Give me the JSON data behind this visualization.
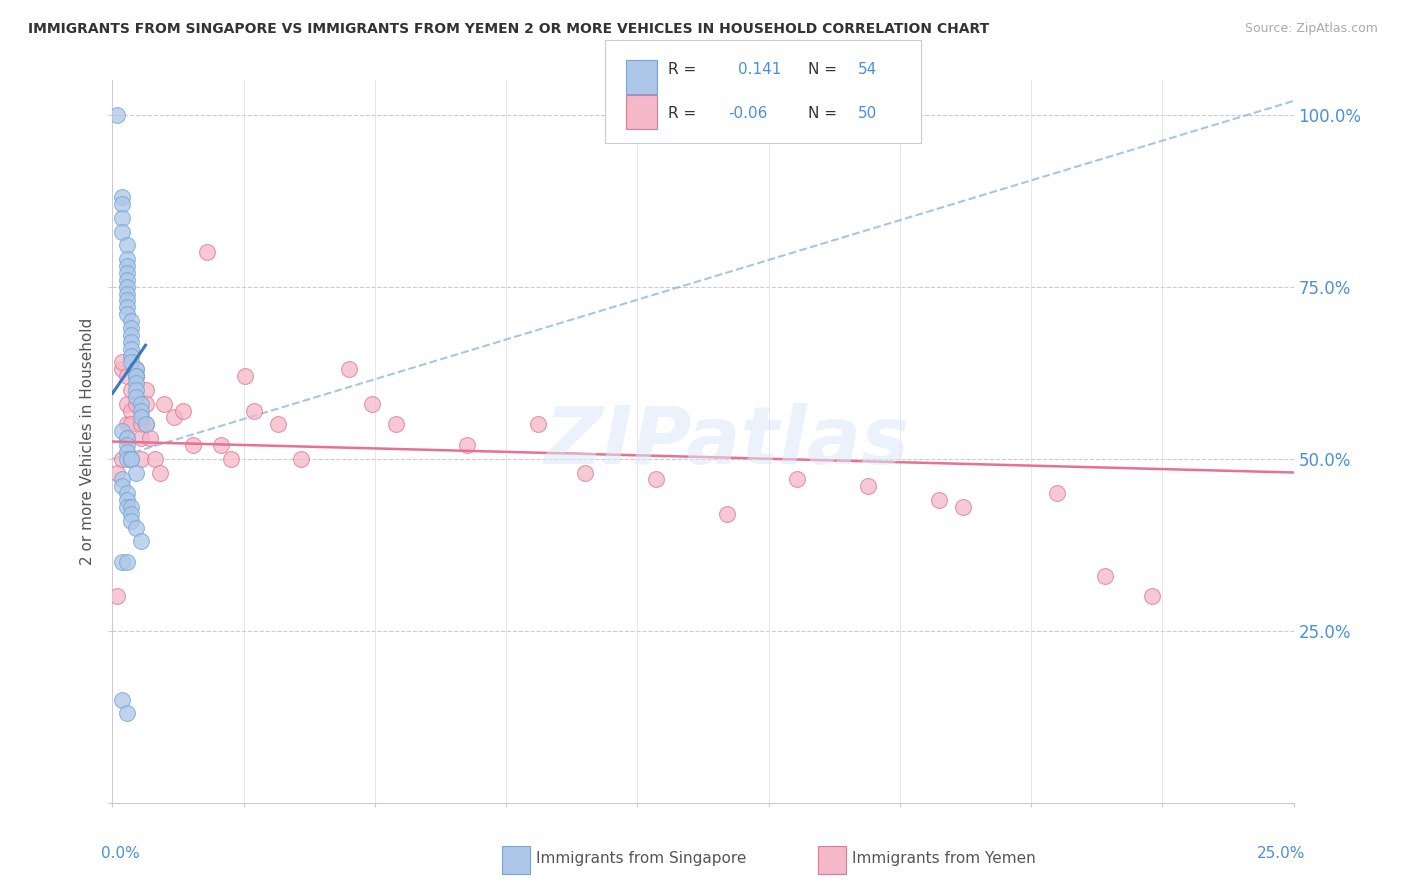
{
  "title": "IMMIGRANTS FROM SINGAPORE VS IMMIGRANTS FROM YEMEN 2 OR MORE VEHICLES IN HOUSEHOLD CORRELATION CHART",
  "source": "Source: ZipAtlas.com",
  "ylabel": "2 or more Vehicles in Household",
  "singapore_color": "#aec6e8",
  "singapore_edge": "#6fa8d6",
  "yemen_color": "#f4b8c8",
  "yemen_edge": "#e07898",
  "singapore_line_color": "#3a7abf",
  "singapore_dash_color": "#90b8e0",
  "yemen_line_color": "#e87090",
  "watermark": "ZIPatlas",
  "xlim": [
    0.0,
    0.25
  ],
  "ylim": [
    0.0,
    1.05
  ],
  "sg_R": 0.141,
  "sg_N": 54,
  "ye_R": -0.06,
  "ye_N": 50,
  "singapore_x": [
    0.001,
    0.002,
    0.002,
    0.002,
    0.002,
    0.003,
    0.003,
    0.003,
    0.003,
    0.003,
    0.003,
    0.003,
    0.003,
    0.003,
    0.003,
    0.004,
    0.004,
    0.004,
    0.004,
    0.004,
    0.004,
    0.004,
    0.005,
    0.005,
    0.005,
    0.005,
    0.005,
    0.005,
    0.006,
    0.006,
    0.006,
    0.007,
    0.002,
    0.003,
    0.003,
    0.003,
    0.003,
    0.004,
    0.004,
    0.005,
    0.002,
    0.002,
    0.003,
    0.003,
    0.003,
    0.004,
    0.004,
    0.004,
    0.005,
    0.006,
    0.002,
    0.003,
    0.002,
    0.003
  ],
  "singapore_y": [
    1.0,
    0.88,
    0.87,
    0.85,
    0.83,
    0.81,
    0.79,
    0.78,
    0.77,
    0.76,
    0.75,
    0.74,
    0.73,
    0.72,
    0.71,
    0.7,
    0.69,
    0.68,
    0.67,
    0.66,
    0.65,
    0.64,
    0.63,
    0.62,
    0.62,
    0.61,
    0.6,
    0.59,
    0.58,
    0.57,
    0.56,
    0.55,
    0.54,
    0.53,
    0.52,
    0.51,
    0.5,
    0.5,
    0.5,
    0.48,
    0.47,
    0.46,
    0.45,
    0.44,
    0.43,
    0.43,
    0.42,
    0.41,
    0.4,
    0.38,
    0.35,
    0.35,
    0.15,
    0.13
  ],
  "yemen_x": [
    0.001,
    0.001,
    0.002,
    0.002,
    0.002,
    0.003,
    0.003,
    0.003,
    0.003,
    0.004,
    0.004,
    0.004,
    0.005,
    0.005,
    0.005,
    0.006,
    0.006,
    0.006,
    0.007,
    0.007,
    0.007,
    0.008,
    0.009,
    0.01,
    0.011,
    0.013,
    0.015,
    0.017,
    0.02,
    0.023,
    0.025,
    0.028,
    0.03,
    0.035,
    0.04,
    0.05,
    0.055,
    0.06,
    0.075,
    0.09,
    0.1,
    0.115,
    0.13,
    0.145,
    0.16,
    0.175,
    0.18,
    0.2,
    0.21,
    0.22
  ],
  "yemen_y": [
    0.3,
    0.48,
    0.5,
    0.63,
    0.64,
    0.62,
    0.58,
    0.55,
    0.53,
    0.6,
    0.57,
    0.55,
    0.63,
    0.62,
    0.58,
    0.55,
    0.53,
    0.5,
    0.6,
    0.58,
    0.55,
    0.53,
    0.5,
    0.48,
    0.58,
    0.56,
    0.57,
    0.52,
    0.8,
    0.52,
    0.5,
    0.62,
    0.57,
    0.55,
    0.5,
    0.63,
    0.58,
    0.55,
    0.52,
    0.55,
    0.48,
    0.47,
    0.42,
    0.47,
    0.46,
    0.44,
    0.43,
    0.45,
    0.33,
    0.3
  ]
}
